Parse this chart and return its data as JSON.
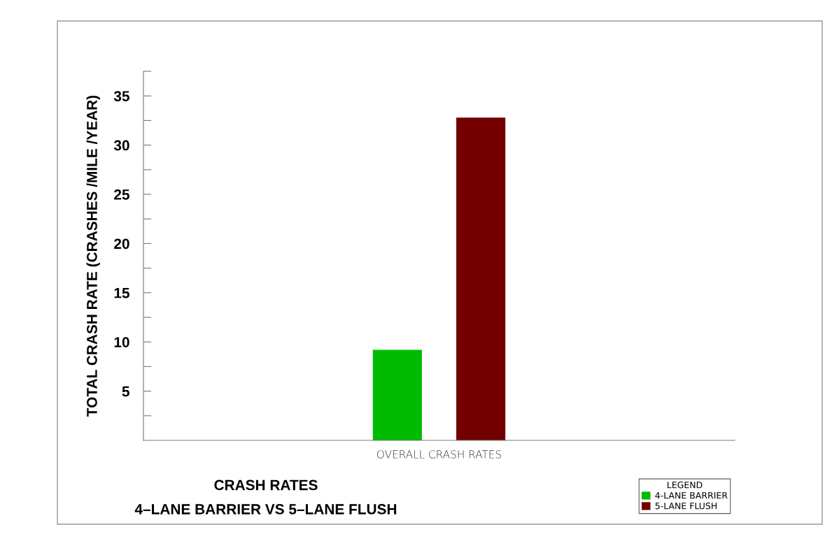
{
  "chart_data": {
    "type": "bar",
    "title": "CRASH RATES\n4–LANE BARRIER VS 5–LANE FLUSH",
    "ylabel": "TOTAL CRASH RATE (CRASHES /MILE /YEAR)",
    "categories": [
      "OVERALL CRASH RATES"
    ],
    "series": [
      {
        "name": "4-LANE BARRIER",
        "color": "#00bb00",
        "values": [
          9.2
        ]
      },
      {
        "name": "5-LANE FLUSH",
        "color": "#720000",
        "values": [
          32.8
        ]
      }
    ],
    "ylim": [
      0,
      37.5
    ],
    "yticks": [
      {
        "value": 2.5,
        "label": null
      },
      5,
      {
        "value": 7.5,
        "label": null
      },
      10,
      {
        "value": 12.5,
        "label": null
      },
      15,
      {
        "value": 17.5,
        "label": null
      },
      20,
      {
        "value": 22.5,
        "label": null
      },
      25,
      {
        "value": 27.5,
        "label": null
      },
      30,
      {
        "value": 32.5,
        "label": null
      },
      35,
      {
        "value": 37.5,
        "label": null
      }
    ],
    "legend": "bottom right",
    "legend_title": "LEGEND",
    "grid": false
  }
}
